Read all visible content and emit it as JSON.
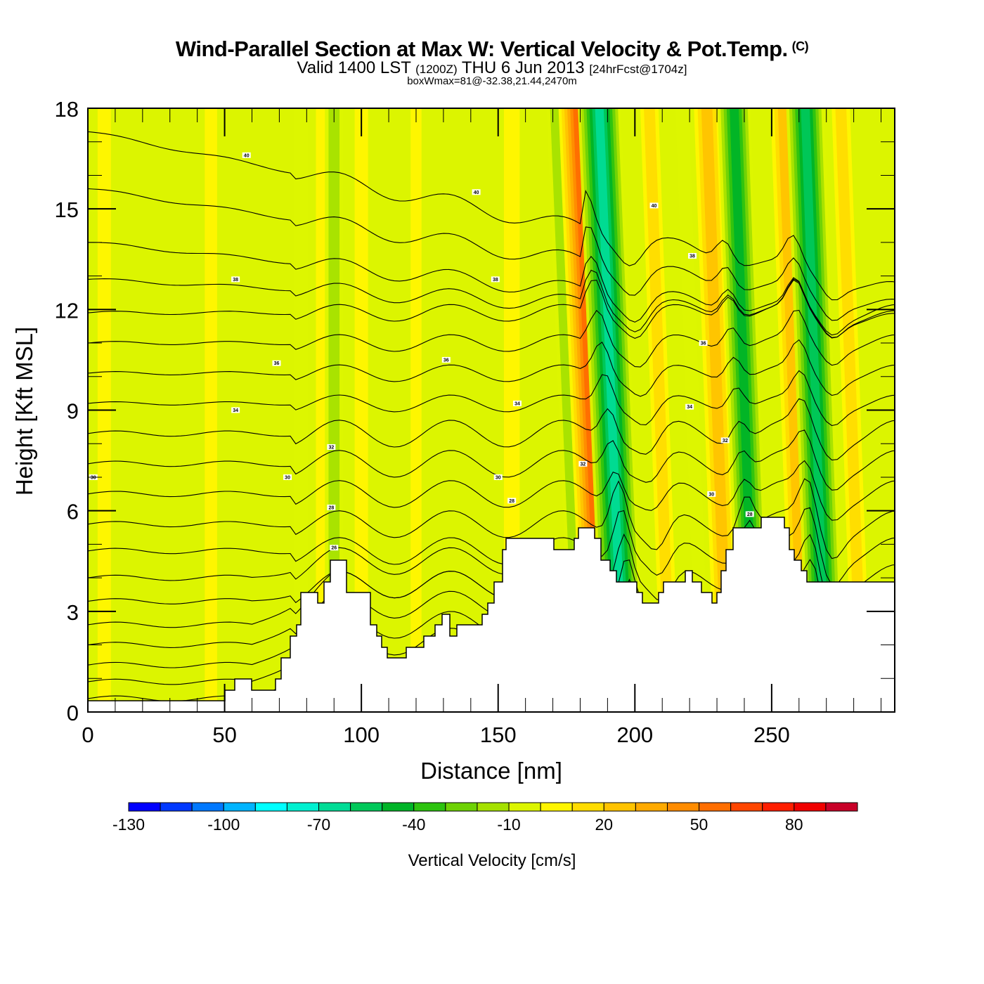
{
  "header": {
    "title": "Wind-Parallel Section at Max W: Vertical Velocity & Pot.Temp.",
    "copyright": "(C)",
    "valid_prefix": "Valid 1400 LST",
    "valid_utc": "(1200Z)",
    "valid_date": "THU 6 Jun 2013",
    "forecast": "[24hrFcst@1704z]",
    "box_wmax": "boxWmax=81@-32.38,21.44,2470m"
  },
  "chart_data": {
    "type": "heatmap",
    "title": "Wind-Parallel Section at Max W: Vertical Velocity & Pot.Temp.",
    "xlabel": "Distance [nm]",
    "ylabel": "Height [Kft MSL]",
    "xlim": [
      0,
      295
    ],
    "ylim": [
      0,
      18
    ],
    "x_ticks": [
      0,
      50,
      100,
      150,
      200,
      250
    ],
    "x_tick_labels": [
      "0",
      "50",
      "100",
      "150",
      "200",
      "250"
    ],
    "y_ticks": [
      0,
      3,
      6,
      9,
      12,
      15,
      18
    ],
    "y_tick_labels": [
      "0",
      "3",
      "6",
      "9",
      "12",
      "15",
      "18"
    ],
    "x_minor_step": 10,
    "y_minor_step": 1,
    "colorbar": {
      "title": "Vertical Velocity [cm/s]",
      "levels": [
        -130,
        -120,
        -110,
        -100,
        -90,
        -80,
        -70,
        -60,
        -50,
        -40,
        -30,
        -20,
        -10,
        0,
        10,
        20,
        30,
        40,
        50,
        60,
        70,
        80,
        90,
        100
      ],
      "colors": [
        "#0000ff",
        "#0038ff",
        "#0078ff",
        "#00b4ff",
        "#00ffff",
        "#00f0d0",
        "#00dc96",
        "#00c85a",
        "#00b428",
        "#2dc30f",
        "#6ed205",
        "#a5e100",
        "#dcf500",
        "#fff500",
        "#ffdc00",
        "#ffc300",
        "#ffaa00",
        "#ff8c00",
        "#ff6e00",
        "#ff4600",
        "#ff1e00",
        "#f00000",
        "#c80028"
      ],
      "tick_values": [
        -130,
        -100,
        -70,
        -40,
        -10,
        20,
        50,
        80
      ],
      "tick_labels": [
        "-130",
        "-100",
        "-70",
        "-40",
        "-10",
        "20",
        "50",
        "80"
      ]
    },
    "velocity_bands": [
      {
        "x": 0,
        "w": 0
      },
      {
        "x": 6,
        "w": 10
      },
      {
        "x": 45,
        "w": 8
      },
      {
        "x": 78,
        "w": -12
      },
      {
        "x": 86,
        "w": 12
      },
      {
        "x": 90,
        "w": -20
      },
      {
        "x": 100,
        "w": 10
      },
      {
        "x": 120,
        "w": 5
      },
      {
        "x": 155,
        "w": 15
      },
      {
        "x": 180,
        "w": -20
      },
      {
        "x": 188,
        "w": 60
      },
      {
        "x": 196,
        "w": -70
      },
      {
        "x": 213,
        "w": 20
      },
      {
        "x": 225,
        "w": -10
      },
      {
        "x": 234,
        "w": 35
      },
      {
        "x": 244,
        "w": -50
      },
      {
        "x": 262,
        "w": 35
      },
      {
        "x": 270,
        "w": -60
      },
      {
        "x": 283,
        "w": 20
      }
    ],
    "theta_contours": {
      "name": "Pot.Temp.",
      "levels": [
        22,
        23,
        24,
        25,
        26,
        27,
        28,
        29,
        30,
        31,
        32,
        33,
        34,
        35,
        36,
        37,
        38,
        39,
        40,
        41
      ],
      "labels": [
        {
          "value": "40",
          "x": 58,
          "y": 16.6
        },
        {
          "value": "40",
          "x": 142,
          "y": 15.5
        },
        {
          "value": "40",
          "x": 207,
          "y": 15.1
        },
        {
          "value": "38",
          "x": 54,
          "y": 12.9
        },
        {
          "value": "38",
          "x": 149,
          "y": 12.9
        },
        {
          "value": "38",
          "x": 221,
          "y": 13.6
        },
        {
          "value": "36",
          "x": 69,
          "y": 10.4
        },
        {
          "value": "36",
          "x": 131,
          "y": 10.5
        },
        {
          "value": "36",
          "x": 225,
          "y": 11.0
        },
        {
          "value": "34",
          "x": 54,
          "y": 9.0
        },
        {
          "value": "34",
          "x": 157,
          "y": 9.2
        },
        {
          "value": "34",
          "x": 220,
          "y": 9.1
        },
        {
          "value": "32",
          "x": 89,
          "y": 7.9
        },
        {
          "value": "32",
          "x": 181,
          "y": 7.4
        },
        {
          "value": "32",
          "x": 233,
          "y": 8.1
        },
        {
          "value": "30",
          "x": 2,
          "y": 7.0
        },
        {
          "value": "30",
          "x": 73,
          "y": 7.0
        },
        {
          "value": "30",
          "x": 150,
          "y": 7.0
        },
        {
          "value": "30",
          "x": 228,
          "y": 6.5
        },
        {
          "value": "28",
          "x": 89,
          "y": 6.1
        },
        {
          "value": "28",
          "x": 155,
          "y": 6.3
        },
        {
          "value": "28",
          "x": 242,
          "y": 5.9
        },
        {
          "value": "26",
          "x": 90,
          "y": 4.9
        }
      ]
    }
  }
}
